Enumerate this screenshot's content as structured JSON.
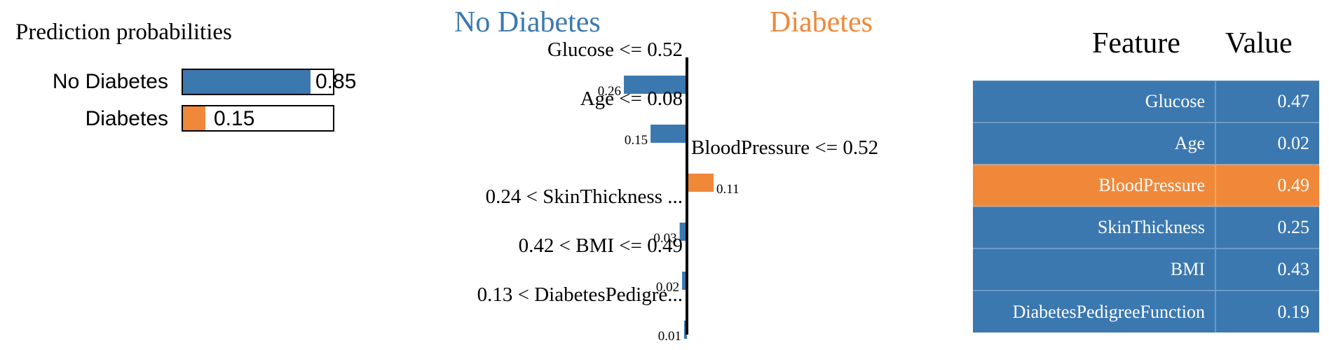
{
  "colors": {
    "no_diabetes": "#3b78b0",
    "diabetes": "#f0883a"
  },
  "prediction": {
    "title": "Prediction probabilities",
    "rows": [
      {
        "label": "No Diabetes",
        "probability": 0.85,
        "display": "0.85",
        "color": "#3b78b0"
      },
      {
        "label": "Diabetes",
        "probability": 0.15,
        "display": "0.15",
        "color": "#f0883a"
      }
    ]
  },
  "explanation": {
    "negative_class": "No Diabetes",
    "positive_class": "Diabetes"
  },
  "chart_data": {
    "type": "bar",
    "orientation": "horizontal",
    "categories": [
      "Glucose <= 0.52",
      "Age <= 0.08",
      "BloodPressure <= 0.52",
      "0.24 < SkinThickness ...",
      "0.42 < BMI <= 0.49",
      "0.13 < DiabetesPedigre..."
    ],
    "values": [
      -0.26,
      -0.15,
      0.11,
      -0.03,
      -0.02,
      -0.01
    ],
    "labels": [
      "0.26",
      "0.15",
      "0.11",
      "0.03",
      "0.02",
      "0.01"
    ],
    "colors": [
      "#3b78b0",
      "#3b78b0",
      "#f0883a",
      "#3b78b0",
      "#3b78b0",
      "#3b78b0"
    ]
  },
  "table": {
    "headers": [
      "Feature",
      "Value"
    ],
    "rows": [
      {
        "feature": "Glucose",
        "value": "0.47",
        "highlight": false
      },
      {
        "feature": "Age",
        "value": "0.02",
        "highlight": false
      },
      {
        "feature": "BloodPressure",
        "value": "0.49",
        "highlight": true
      },
      {
        "feature": "SkinThickness",
        "value": "0.25",
        "highlight": false
      },
      {
        "feature": "BMI",
        "value": "0.43",
        "highlight": false
      },
      {
        "feature": "DiabetesPedigreeFunction",
        "value": "0.19",
        "highlight": false
      }
    ]
  }
}
